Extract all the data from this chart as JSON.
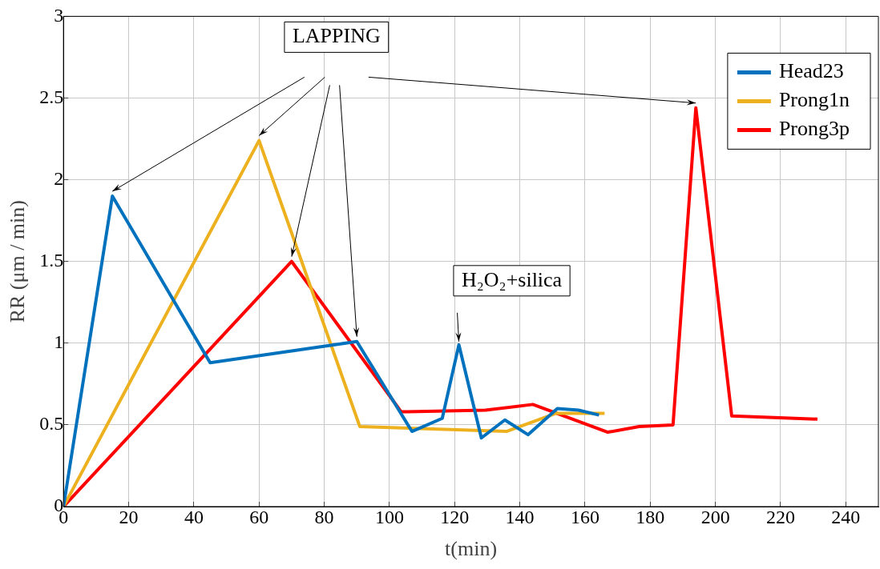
{
  "chart_data": {
    "type": "line",
    "xlabel": "t(min)",
    "ylabel": "RR (μm / min)",
    "xlim": [
      0,
      250
    ],
    "xticks": [
      0,
      20,
      40,
      60,
      80,
      100,
      120,
      140,
      160,
      180,
      200,
      220,
      240
    ],
    "ylim": [
      0,
      3
    ],
    "yticks": [
      0,
      0.5,
      1,
      1.5,
      2,
      2.5,
      3
    ],
    "grid": true,
    "legend": "top right",
    "marker": "none",
    "line_style": "solid",
    "series": [
      {
        "name": "Head23",
        "color": "#0072bd",
        "x": [
          0,
          15,
          45,
          90,
          106.9,
          116.2,
          121.3,
          128.2,
          135.4,
          142.5,
          151.5,
          158,
          164.3
        ],
        "values": [
          0,
          1.9,
          0.88,
          1.01,
          0.46,
          0.54,
          0.99,
          0.42,
          0.53,
          0.44,
          0.6,
          0.59,
          0.56
        ]
      },
      {
        "name": "Prong1n",
        "color": "#edb120",
        "x": [
          0,
          60,
          90.9,
          135.9,
          151,
          166
        ],
        "values": [
          0,
          2.24,
          0.49,
          0.46,
          0.57,
          0.57
        ]
      },
      {
        "name": "Prong3p",
        "color": "#ff0000",
        "x": [
          0,
          70,
          103.6,
          129.5,
          144,
          167,
          176.6,
          187,
          194,
          205,
          231.3
        ],
        "values": [
          0,
          1.5,
          0.58,
          0.59,
          0.625,
          0.455,
          0.49,
          0.5,
          2.44,
          0.555,
          0.535
        ]
      }
    ],
    "annotations": [
      "LAPPING",
      {
        "text": "H₂O₂+silica",
        "x": 121.3,
        "y": 0.99
      }
    ]
  }
}
